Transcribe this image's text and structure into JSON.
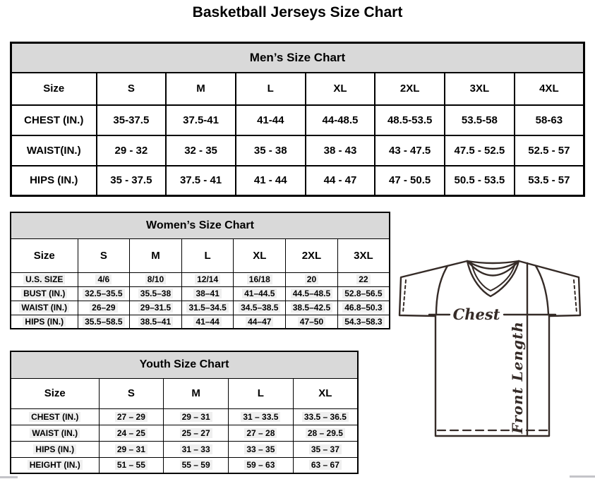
{
  "page_title": "Basketball Jerseys Size Chart",
  "colors": {
    "table_header_bg": "#d9d9d9",
    "table_border": "#000000",
    "diagram_line": "#352b27",
    "value_highlight": "#efefef"
  },
  "tables": {
    "mens": {
      "title": "Men’s Size Chart",
      "columns": [
        "Size",
        "S",
        "M",
        "L",
        "XL",
        "2XL",
        "3XL",
        "4XL"
      ],
      "rows": [
        {
          "label": "CHEST (IN.)",
          "values": [
            "35-37.5",
            "37.5-41",
            "41-44",
            "44-48.5",
            "48.5-53.5",
            "53.5-58",
            "58-63"
          ]
        },
        {
          "label": "WAIST(IN.)",
          "values": [
            "29 - 32",
            "32 - 35",
            "35 - 38",
            "38 - 43",
            "43 - 47.5",
            "47.5 - 52.5",
            "52.5 - 57"
          ]
        },
        {
          "label": "HIPS (IN.)",
          "values": [
            "35 - 37.5",
            "37.5 - 41",
            "41 - 44",
            "44 - 47",
            "47 - 50.5",
            "50.5 - 53.5",
            "53.5 - 57"
          ]
        }
      ]
    },
    "womens": {
      "title": "Women’s Size Chart",
      "columns": [
        "Size",
        "S",
        "M",
        "L",
        "XL",
        "2XL",
        "3XL"
      ],
      "rows": [
        {
          "label": "U.S. SIZE",
          "values": [
            "4/6",
            "8/10",
            "12/14",
            "16/18",
            "20",
            "22"
          ]
        },
        {
          "label": "BUST (IN.)",
          "values": [
            "32.5–35.5",
            "35.5–38",
            "38–41",
            "41–44.5",
            "44.5–48.5",
            "52.8–56.5"
          ]
        },
        {
          "label": "WAIST (IN.)",
          "values": [
            "26–29",
            "29–31.5",
            "31.5–34.5",
            "34.5–38.5",
            "38.5–42.5",
            "46.8–50.3"
          ]
        },
        {
          "label": "HIPS (IN.)",
          "values": [
            "35.5–58.5",
            "38.5–41",
            "41–44",
            "44–47",
            "47–50",
            "54.3–58.3"
          ]
        }
      ]
    },
    "youth": {
      "title": "Youth Size Chart",
      "columns": [
        "Size",
        "S",
        "M",
        "L",
        "XL"
      ],
      "rows": [
        {
          "label": "CHEST (IN.)",
          "values": [
            "27 – 29",
            "29 – 31",
            "31 – 33.5",
            "33.5 – 36.5"
          ]
        },
        {
          "label": "WAIST (IN.)",
          "values": [
            "24 – 25",
            "25 – 27",
            "27 – 28",
            "28 – 29.5"
          ]
        },
        {
          "label": "HIPS (IN.)",
          "values": [
            "29 – 31",
            "31 – 33",
            "33 – 35",
            "35 – 37"
          ]
        },
        {
          "label": "HEIGHT (IN.)",
          "values": [
            "51 – 55",
            "55 – 59",
            "59 – 63",
            "63 – 67"
          ]
        }
      ]
    }
  },
  "diagram": {
    "chest_label": "Chest",
    "front_length_label": "Front Length"
  }
}
